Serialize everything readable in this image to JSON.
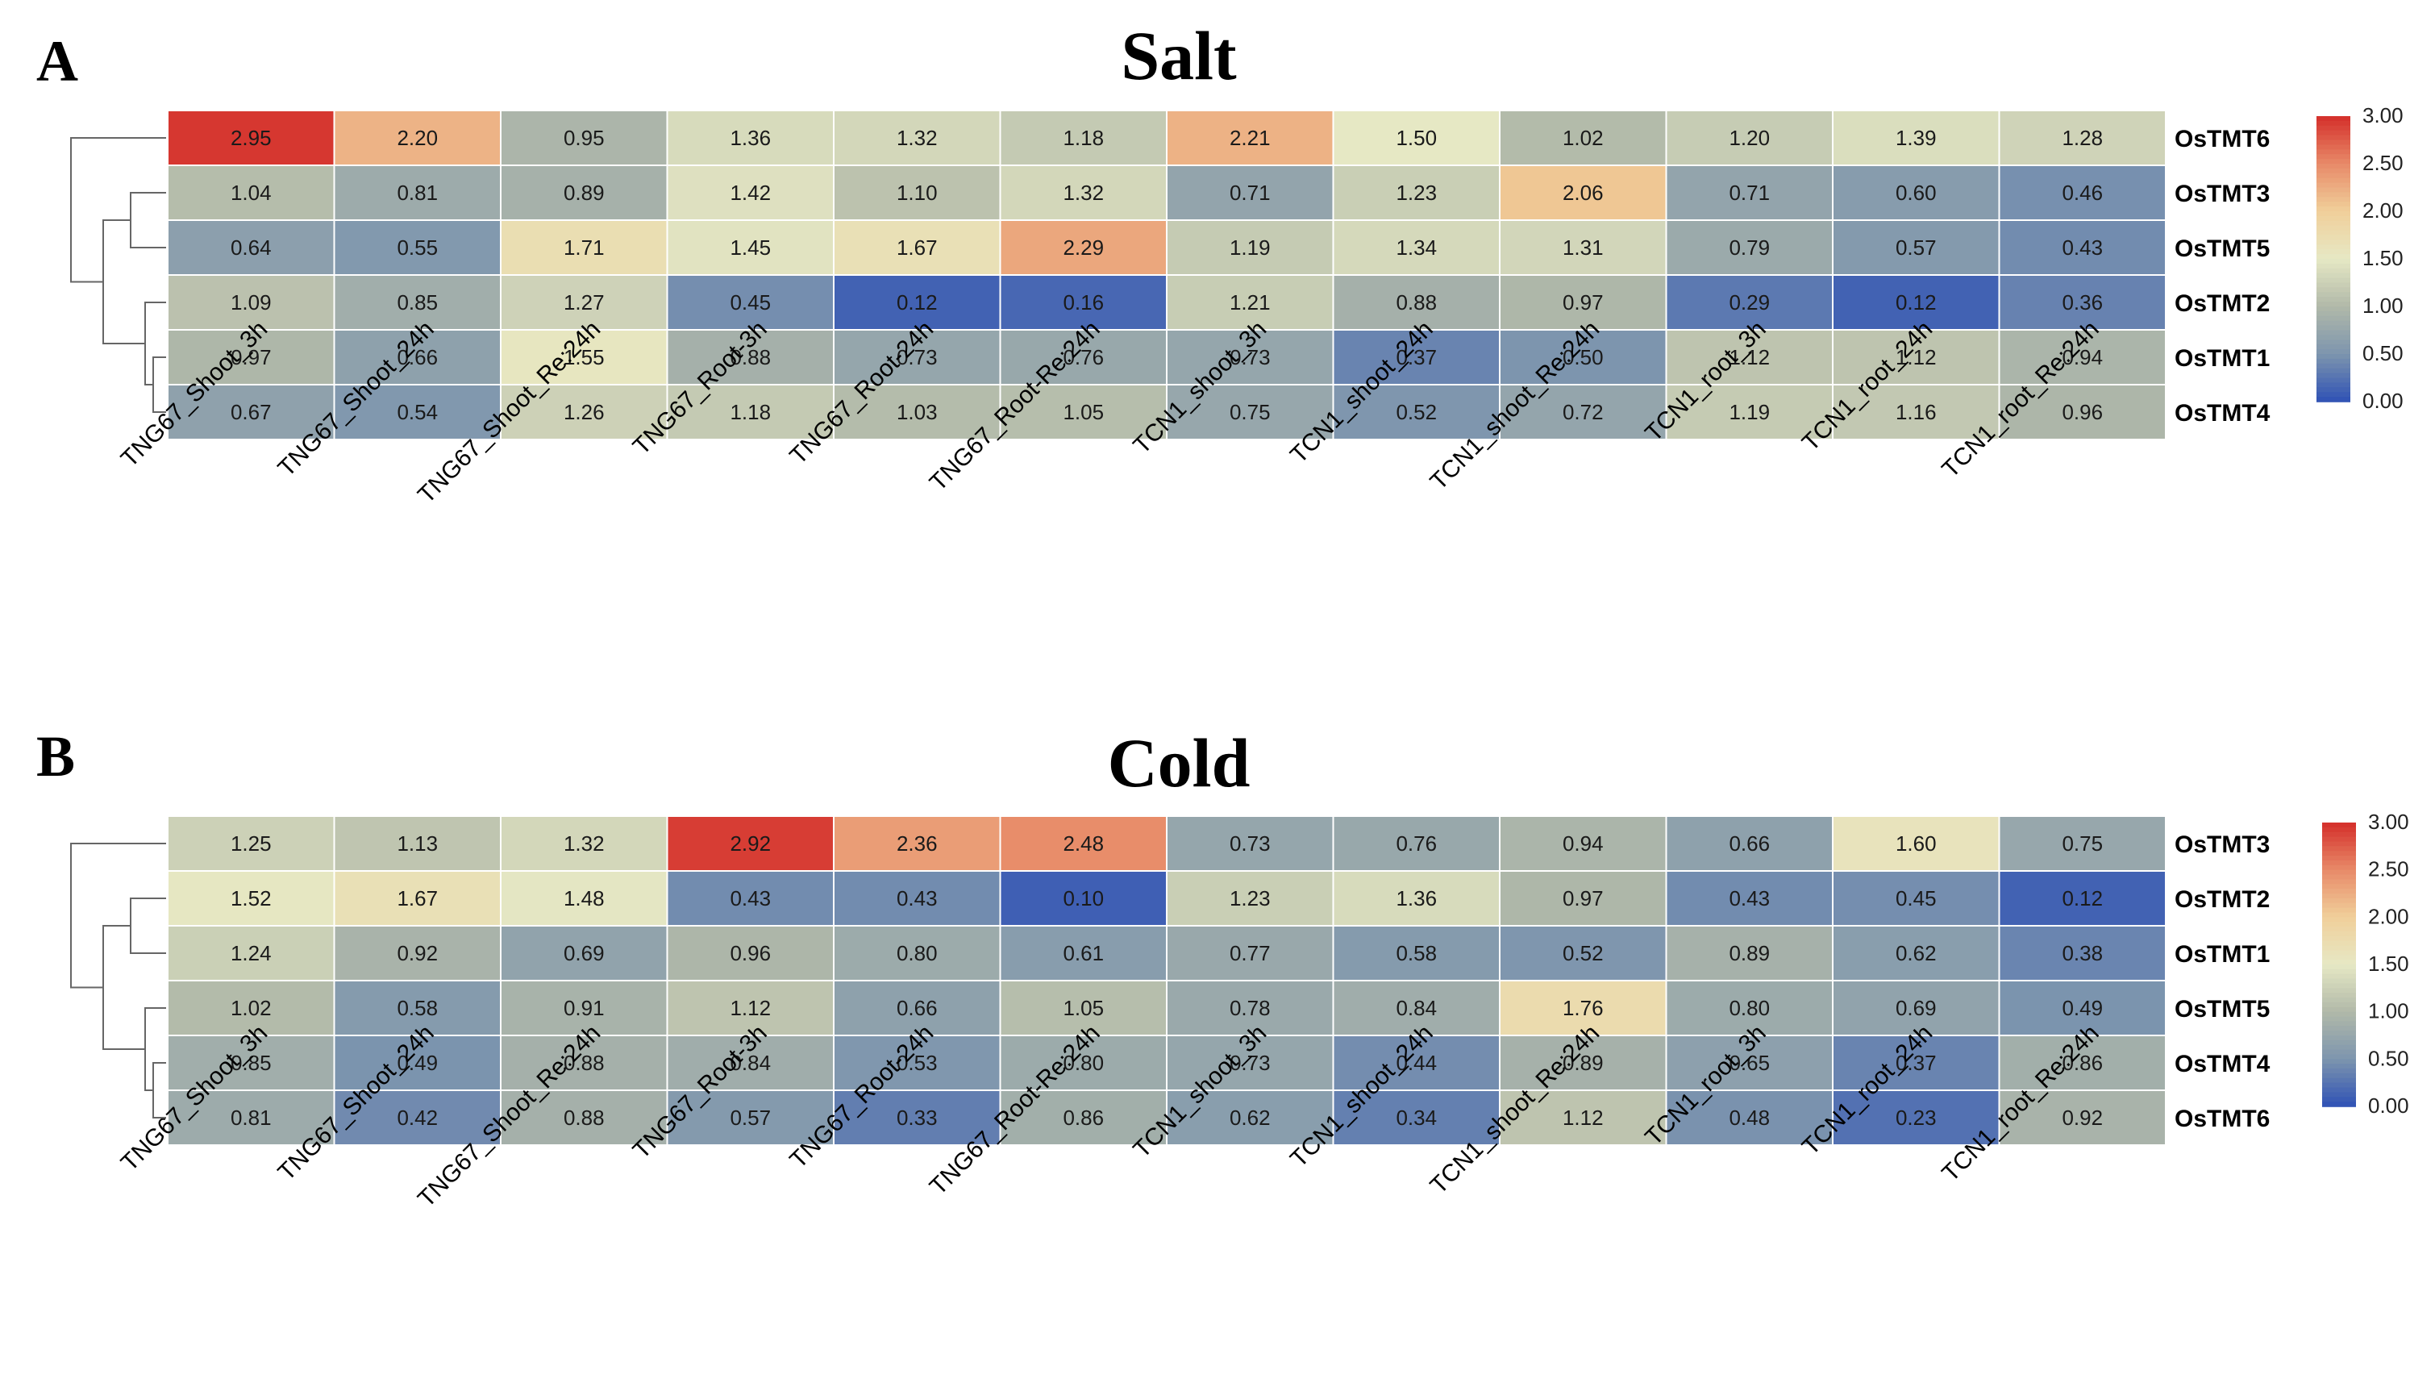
{
  "chart_data": [
    {
      "type": "heatmap",
      "panel_label": "A",
      "title": "Salt",
      "rows": [
        "OsTMT6",
        "OsTMT3",
        "OsTMT5",
        "OsTMT2",
        "OsTMT1",
        "OsTMT4"
      ],
      "columns": [
        "TNG67_Shoot_3h",
        "TNG67_Shoot_24h",
        "TNG67_Shoot_Re:24h",
        "TNG67_Root-3h",
        "TNG67_Root-24h",
        "TNG67_Root-Re:24h",
        "TCN1_shoot_3h",
        "TCN1_shoot_24h",
        "TCN1_shoot_Re:24h",
        "TCN1_root_3h",
        "TCN1_root_24h",
        "TCN1_root_Re:24h"
      ],
      "values": [
        [
          2.95,
          2.2,
          0.95,
          1.36,
          1.32,
          1.18,
          2.21,
          1.5,
          1.02,
          1.2,
          1.39,
          1.28
        ],
        [
          1.04,
          0.81,
          0.89,
          1.42,
          1.1,
          1.32,
          0.71,
          1.23,
          2.06,
          0.71,
          0.6,
          0.46
        ],
        [
          0.64,
          0.55,
          1.71,
          1.45,
          1.67,
          2.29,
          1.19,
          1.34,
          1.31,
          0.79,
          0.57,
          0.43
        ],
        [
          1.09,
          0.85,
          1.27,
          0.45,
          0.12,
          0.16,
          1.21,
          0.88,
          0.97,
          0.29,
          0.12,
          0.36
        ],
        [
          0.97,
          0.66,
          1.55,
          0.88,
          0.73,
          0.76,
          0.73,
          0.37,
          0.5,
          1.12,
          1.12,
          0.94
        ],
        [
          0.67,
          0.54,
          1.26,
          1.18,
          1.03,
          1.05,
          0.75,
          0.52,
          0.72,
          1.19,
          1.16,
          0.96
        ]
      ],
      "legend_ticks": [
        "3.00",
        "2.50",
        "2.00",
        "1.50",
        "1.00",
        "0.50",
        "0.00"
      ],
      "value_range": [
        0,
        3
      ]
    },
    {
      "type": "heatmap",
      "panel_label": "B",
      "title": "Cold",
      "rows": [
        "OsTMT3",
        "OsTMT2",
        "OsTMT1",
        "OsTMT5",
        "OsTMT4",
        "OsTMT6"
      ],
      "columns": [
        "TNG67_Shoot_3h",
        "TNG67_Shoot_24h",
        "TNG67_Shoot_Re:24h",
        "TNG67_Root-3h",
        "TNG67_Root-24h",
        "TNG67_Root-Re:24h",
        "TCN1_shoot_3h",
        "TCN1_shoot_24h",
        "TCN1_shoot_Re:24h",
        "TCN1_root_3h",
        "TCN1_root_24h",
        "TCN1_root_Re:24h"
      ],
      "values": [
        [
          1.25,
          1.13,
          1.32,
          2.92,
          2.36,
          2.48,
          0.73,
          0.76,
          0.94,
          0.66,
          1.6,
          0.75
        ],
        [
          1.52,
          1.67,
          1.48,
          0.43,
          0.43,
          0.1,
          1.23,
          1.36,
          0.97,
          0.43,
          0.45,
          0.12
        ],
        [
          1.24,
          0.92,
          0.69,
          0.96,
          0.8,
          0.61,
          0.77,
          0.58,
          0.52,
          0.89,
          0.62,
          0.38
        ],
        [
          1.02,
          0.58,
          0.91,
          1.12,
          0.66,
          1.05,
          0.78,
          0.84,
          1.76,
          0.8,
          0.69,
          0.49
        ],
        [
          0.85,
          0.49,
          0.88,
          0.84,
          0.53,
          0.8,
          0.73,
          0.44,
          0.89,
          0.65,
          0.37,
          0.86
        ],
        [
          0.81,
          0.42,
          0.88,
          0.57,
          0.33,
          0.86,
          0.62,
          0.34,
          1.12,
          0.48,
          0.23,
          0.92
        ]
      ],
      "legend_ticks": [
        "3.00",
        "2.50",
        "2.00",
        "1.50",
        "1.00",
        "0.50",
        "0.00"
      ],
      "value_range": [
        0,
        3
      ]
    }
  ],
  "colorscale": {
    "low": "#2F52B5",
    "mid": "#E6E8C4",
    "high": "#D42E2A",
    "stops": [
      "#2F52B5",
      "#7D95AE",
      "#B1B9A9",
      "#E6E8C4",
      "#F0CF9A",
      "#E88A68",
      "#D42E2A"
    ]
  }
}
